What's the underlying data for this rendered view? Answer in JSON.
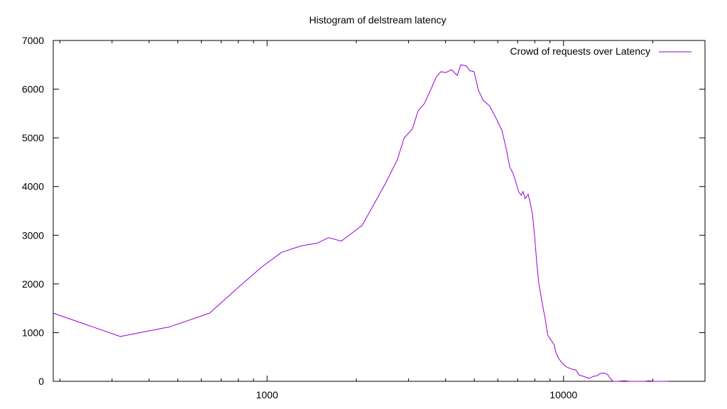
{
  "chart_data": {
    "type": "line",
    "title": "Histogram of delstream latency",
    "xlabel": "",
    "ylabel": "",
    "x_scale": "log",
    "xlim": [
      190,
      30000
    ],
    "ylim": [
      0,
      7000
    ],
    "x_ticks": [
      1000,
      10000
    ],
    "x_tick_labels": [
      "1000",
      "10000"
    ],
    "y_ticks": [
      0,
      1000,
      2000,
      3000,
      4000,
      5000,
      6000,
      7000
    ],
    "y_tick_labels": [
      "0",
      "1000",
      "2000",
      "3000",
      "4000",
      "5000",
      "6000",
      "7000"
    ],
    "grid": false,
    "legend_position": "top-right",
    "series": [
      {
        "name": "Crowd of requests over Latency",
        "color": "#9400d3",
        "points": [
          [
            190,
            1400
          ],
          [
            320,
            920
          ],
          [
            470,
            1120
          ],
          [
            640,
            1400
          ],
          [
            790,
            1900
          ],
          [
            960,
            2350
          ],
          [
            1120,
            2650
          ],
          [
            1300,
            2780
          ],
          [
            1480,
            2840
          ],
          [
            1610,
            2950
          ],
          [
            1780,
            2880
          ],
          [
            2090,
            3200
          ],
          [
            2300,
            3650
          ],
          [
            2500,
            4050
          ],
          [
            2750,
            4550
          ],
          [
            2900,
            5000
          ],
          [
            3090,
            5180
          ],
          [
            3230,
            5550
          ],
          [
            3390,
            5700
          ],
          [
            3560,
            5980
          ],
          [
            3720,
            6250
          ],
          [
            3860,
            6360
          ],
          [
            4000,
            6340
          ],
          [
            4190,
            6400
          ],
          [
            4380,
            6280
          ],
          [
            4500,
            6500
          ],
          [
            4700,
            6480
          ],
          [
            4820,
            6380
          ],
          [
            4990,
            6360
          ],
          [
            5160,
            5980
          ],
          [
            5350,
            5780
          ],
          [
            5640,
            5650
          ],
          [
            5900,
            5420
          ],
          [
            6200,
            5150
          ],
          [
            6420,
            4750
          ],
          [
            6590,
            4400
          ],
          [
            6780,
            4250
          ],
          [
            7050,
            3900
          ],
          [
            7200,
            3820
          ],
          [
            7300,
            3900
          ],
          [
            7420,
            3750
          ],
          [
            7600,
            3840
          ],
          [
            7730,
            3650
          ],
          [
            7870,
            3400
          ],
          [
            8010,
            2900
          ],
          [
            8130,
            2400
          ],
          [
            8260,
            2000
          ],
          [
            8420,
            1700
          ],
          [
            8720,
            1200
          ],
          [
            8840,
            950
          ],
          [
            9060,
            850
          ],
          [
            9300,
            750
          ],
          [
            9420,
            600
          ],
          [
            9600,
            480
          ],
          [
            9870,
            380
          ],
          [
            10200,
            300
          ],
          [
            10660,
            250
          ],
          [
            11030,
            230
          ],
          [
            11280,
            130
          ],
          [
            11690,
            100
          ],
          [
            12170,
            60
          ],
          [
            12600,
            100
          ],
          [
            13030,
            120
          ],
          [
            13270,
            160
          ],
          [
            13660,
            170
          ],
          [
            14080,
            140
          ],
          [
            14370,
            60
          ],
          [
            14700,
            0
          ],
          [
            15220,
            0
          ],
          [
            16030,
            10
          ],
          [
            16730,
            0
          ],
          [
            17700,
            0
          ],
          [
            18790,
            0
          ],
          [
            19460,
            10
          ],
          [
            20170,
            0
          ],
          [
            21180,
            0
          ],
          [
            22500,
            0
          ]
        ]
      }
    ]
  }
}
